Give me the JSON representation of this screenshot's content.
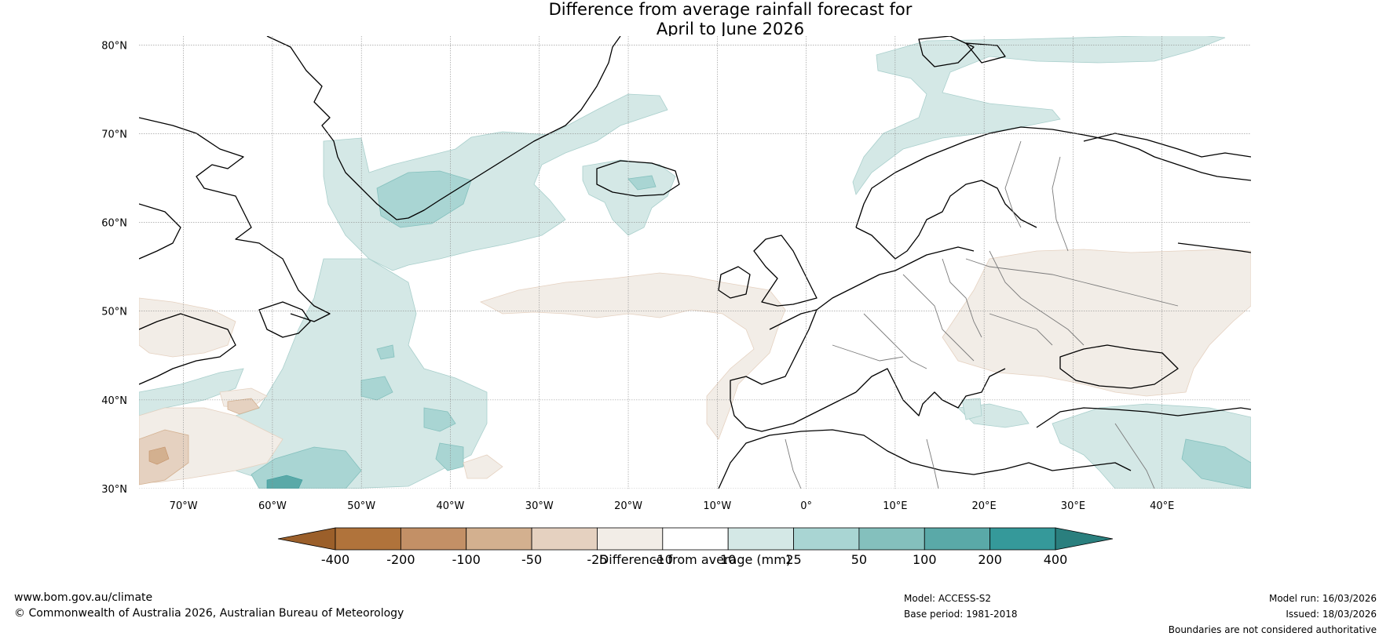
{
  "title": {
    "line1": "Difference from average rainfall forecast for",
    "line2": "April to June 2026"
  },
  "map": {
    "lon_range": [
      -75,
      50
    ],
    "lat_range": [
      30,
      81
    ],
    "latitude_labels": [
      "30°N",
      "40°N",
      "50°N",
      "60°N",
      "70°N",
      "80°N"
    ],
    "latitude_values": [
      30,
      40,
      50,
      60,
      70,
      80
    ],
    "longitude_labels": [
      "70°W",
      "60°W",
      "50°W",
      "40°W",
      "30°W",
      "20°W",
      "10°W",
      "0°",
      "10°E",
      "20°E",
      "30°E",
      "40°E"
    ],
    "longitude_values": [
      -70,
      -60,
      -50,
      -40,
      -30,
      -20,
      -10,
      0,
      10,
      20,
      30,
      40
    ]
  },
  "colorbar": {
    "label": "Difference from average (mm)",
    "tick_labels": [
      "-400",
      "-200",
      "-100",
      "-50",
      "-25",
      "-10",
      "10",
      "25",
      "50",
      "100",
      "200",
      "400"
    ],
    "colors": [
      "#9b5f2a",
      "#b0733b",
      "#c39066",
      "#d3b08f",
      "#e5d1c0",
      "#f2ede7",
      "#ffffff",
      "#d4e8e6",
      "#a9d5d3",
      "#84c0bd",
      "#5aa9a8",
      "#35999a",
      "#2a7f7e"
    ]
  },
  "footer": {
    "url": "www.bom.gov.au/climate",
    "copyright": "© Commonwealth of Australia 2026, Australian Bureau of Meteorology",
    "model": "Model: ACCESS-S2",
    "base_period": "Base period: 1981-2018",
    "model_run": "Model run: 16/03/2026",
    "issued": "Issued: 18/03/2026",
    "disclaimer": "Boundaries are not considered authoritative"
  }
}
